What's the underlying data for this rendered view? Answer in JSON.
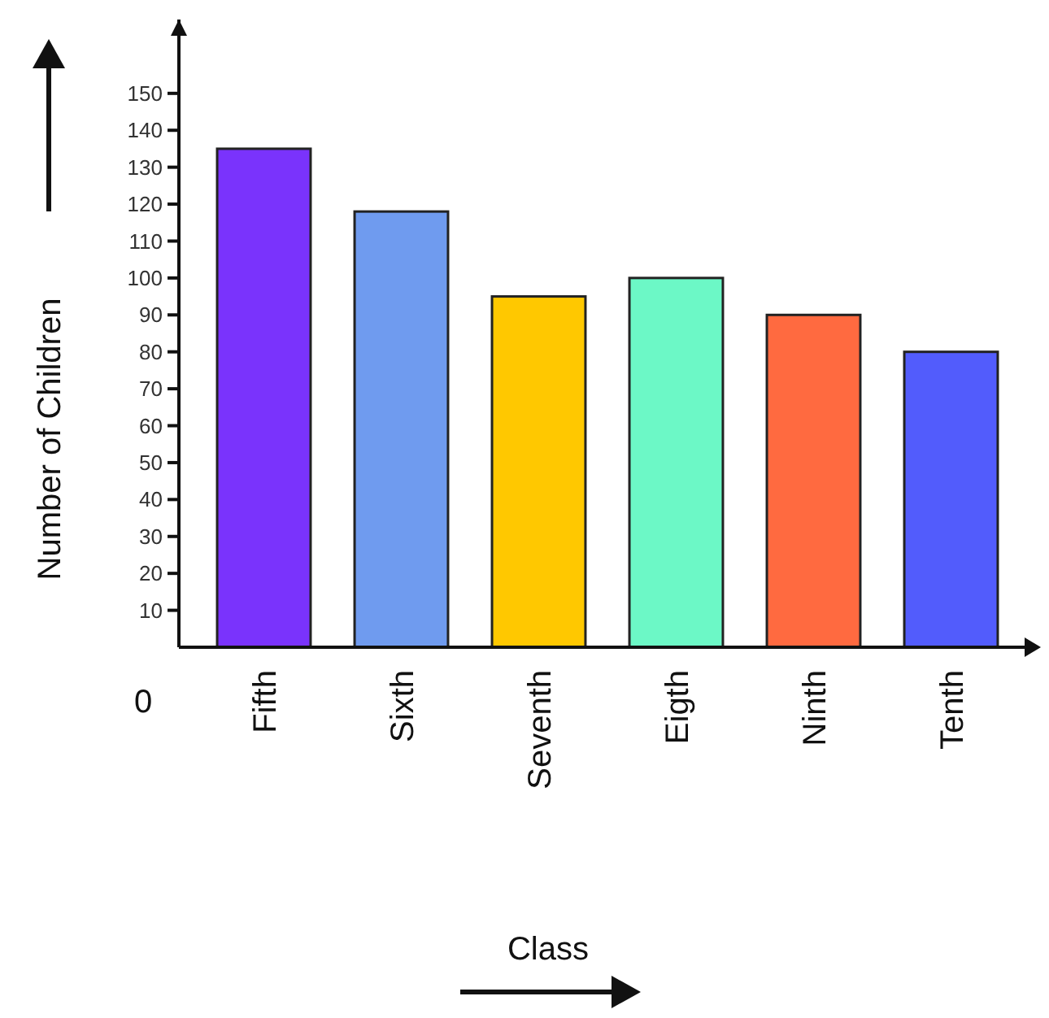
{
  "chart_data": {
    "type": "bar",
    "xlabel": "Class",
    "ylabel": "Number of Children",
    "categories": [
      "Fifth",
      "Sixth",
      "Seventh",
      "Eigth",
      "Ninth",
      "Tenth"
    ],
    "values": [
      135,
      118,
      95,
      100,
      90,
      80
    ],
    "colors": [
      "#7a33fc",
      "#6f9bef",
      "#ffc800",
      "#6cf8c6",
      "#ff6a40",
      "#525cfc"
    ],
    "ylim": [
      0,
      170
    ],
    "annotations": [
      "0"
    ],
    "yticks": [
      10,
      20,
      30,
      40,
      50,
      60,
      70,
      80,
      90,
      100,
      110,
      120,
      130,
      140,
      150
    ],
    "grid": false
  }
}
